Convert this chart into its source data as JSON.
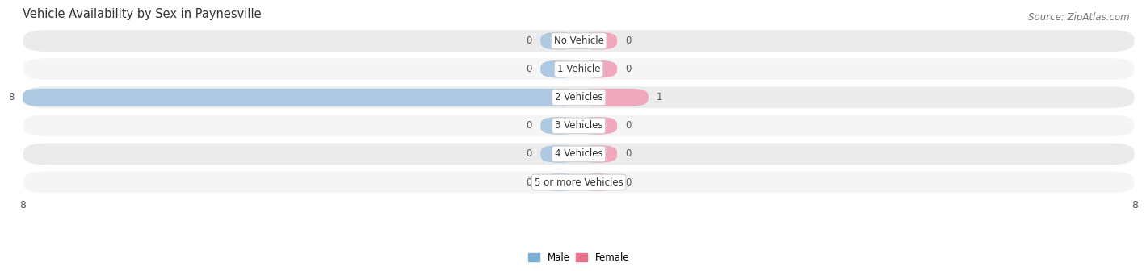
{
  "title": "Vehicle Availability by Sex in Paynesville",
  "source": "Source: ZipAtlas.com",
  "categories": [
    "No Vehicle",
    "1 Vehicle",
    "2 Vehicles",
    "3 Vehicles",
    "4 Vehicles",
    "5 or more Vehicles"
  ],
  "male_values": [
    0,
    0,
    8,
    0,
    0,
    0
  ],
  "female_values": [
    0,
    0,
    1,
    0,
    0,
    0
  ],
  "male_color": "#7bafd4",
  "female_color": "#e8738a",
  "male_light_color": "#aec9e2",
  "female_light_color": "#f0a8bc",
  "row_bg_even": "#ebebeb",
  "row_bg_odd": "#f5f5f5",
  "xlim_max": 8,
  "stub_size": 0.55,
  "title_fontsize": 10.5,
  "source_fontsize": 8.5,
  "label_fontsize": 8.5,
  "tick_fontsize": 9,
  "value_label_color": "#555555",
  "category_label_color": "#333333"
}
